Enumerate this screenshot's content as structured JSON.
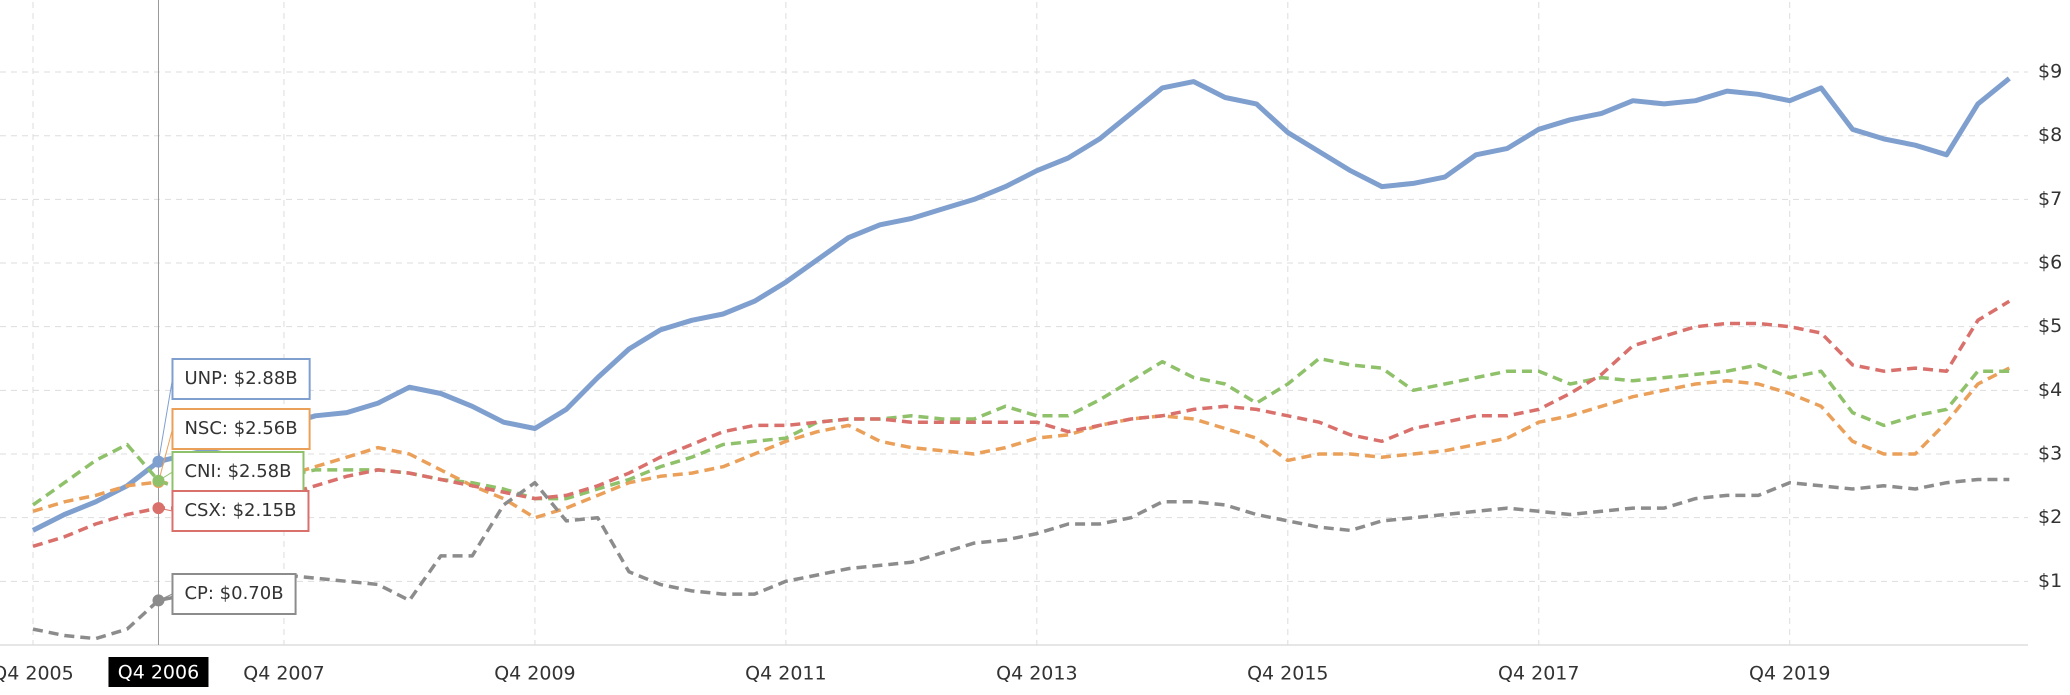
{
  "chart_data": {
    "type": "line",
    "categories": [
      "Q4 2005",
      null,
      null,
      null,
      "Q4 2006",
      null,
      null,
      null,
      "Q4 2007",
      null,
      null,
      null,
      null,
      null,
      null,
      null,
      "Q4 2009",
      null,
      null,
      null,
      null,
      null,
      null,
      null,
      "Q4 2011",
      null,
      null,
      null,
      null,
      null,
      null,
      null,
      "Q4 2013",
      null,
      null,
      null,
      null,
      null,
      null,
      null,
      "Q4 2015",
      null,
      null,
      null,
      null,
      null,
      null,
      null,
      "Q4 2017",
      null,
      null,
      null,
      null,
      null,
      null,
      null,
      "Q4 2019",
      null,
      null,
      null,
      null,
      null,
      null,
      null
    ],
    "highlight_category": 4,
    "series": [
      {
        "name": "UNP",
        "color": "#7f9fcf",
        "dashed": false,
        "tooltip": "UNP: $2.88B",
        "values": [
          1.8,
          2.05,
          2.25,
          2.5,
          2.88,
          3.0,
          3.1,
          3.3,
          3.45,
          3.6,
          3.65,
          3.8,
          4.05,
          3.95,
          3.75,
          3.5,
          3.4,
          3.7,
          4.2,
          4.65,
          4.95,
          5.1,
          5.2,
          5.4,
          5.7,
          6.05,
          6.4,
          6.6,
          6.7,
          6.85,
          7.0,
          7.2,
          7.45,
          7.65,
          7.95,
          8.35,
          8.75,
          8.85,
          8.6,
          8.5,
          8.05,
          7.75,
          7.45,
          7.2,
          7.25,
          7.35,
          7.7,
          7.8,
          8.1,
          8.25,
          8.35,
          8.55,
          8.5,
          8.55,
          8.7,
          8.65,
          8.55,
          8.75,
          8.1,
          7.95,
          7.85,
          7.7,
          8.5,
          8.9
        ]
      },
      {
        "name": "NSC",
        "color": "#eba05a",
        "dashed": true,
        "tooltip": "NSC: $2.56B",
        "values": [
          2.1,
          2.25,
          2.35,
          2.5,
          2.56,
          2.5,
          2.5,
          2.6,
          2.65,
          2.8,
          2.95,
          3.1,
          3.0,
          2.75,
          2.5,
          2.3,
          2.0,
          2.15,
          2.35,
          2.55,
          2.65,
          2.7,
          2.8,
          3.0,
          3.2,
          3.35,
          3.45,
          3.2,
          3.1,
          3.05,
          3.0,
          3.1,
          3.25,
          3.3,
          3.45,
          3.55,
          3.6,
          3.55,
          3.4,
          3.25,
          2.9,
          3.0,
          3.0,
          2.95,
          3.0,
          3.05,
          3.15,
          3.25,
          3.5,
          3.6,
          3.75,
          3.9,
          4.0,
          4.1,
          4.15,
          4.1,
          3.95,
          3.75,
          3.2,
          3.0,
          3.0,
          3.5,
          4.1,
          4.35
        ]
      },
      {
        "name": "CNI",
        "color": "#8fc16a",
        "dashed": true,
        "tooltip": "CNI: $2.58B",
        "values": [
          2.2,
          2.55,
          2.9,
          3.15,
          2.58,
          2.4,
          2.3,
          2.5,
          2.65,
          2.75,
          2.75,
          2.75,
          2.7,
          2.6,
          2.55,
          2.45,
          2.3,
          2.3,
          2.45,
          2.6,
          2.8,
          2.95,
          3.15,
          3.2,
          3.25,
          3.5,
          3.55,
          3.55,
          3.6,
          3.55,
          3.55,
          3.75,
          3.6,
          3.6,
          3.85,
          4.15,
          4.45,
          4.2,
          4.1,
          3.8,
          4.1,
          4.5,
          4.4,
          4.35,
          4.0,
          4.1,
          4.2,
          4.3,
          4.3,
          4.1,
          4.2,
          4.15,
          4.2,
          4.25,
          4.3,
          4.4,
          4.2,
          4.3,
          3.65,
          3.45,
          3.6,
          3.7,
          4.3,
          4.3
        ]
      },
      {
        "name": "CSX",
        "color": "#d9706b",
        "dashed": true,
        "tooltip": "CSX: $2.15B",
        "values": [
          1.55,
          1.7,
          1.9,
          2.05,
          2.15,
          2.15,
          2.2,
          2.3,
          2.35,
          2.5,
          2.65,
          2.75,
          2.7,
          2.6,
          2.5,
          2.4,
          2.3,
          2.35,
          2.5,
          2.7,
          2.95,
          3.15,
          3.35,
          3.45,
          3.45,
          3.5,
          3.55,
          3.55,
          3.5,
          3.5,
          3.5,
          3.5,
          3.5,
          3.35,
          3.45,
          3.55,
          3.6,
          3.7,
          3.75,
          3.7,
          3.6,
          3.5,
          3.3,
          3.2,
          3.4,
          3.5,
          3.6,
          3.6,
          3.7,
          3.95,
          4.25,
          4.7,
          4.85,
          5.0,
          5.05,
          5.05,
          5.0,
          4.9,
          4.4,
          4.3,
          4.35,
          4.3,
          5.1,
          5.4
        ]
      },
      {
        "name": "CP",
        "color": "#8c8c8c",
        "dashed": true,
        "tooltip": "CP: $0.70B",
        "values": [
          0.25,
          0.15,
          0.1,
          0.25,
          0.7,
          0.8,
          1.0,
          1.1,
          1.1,
          1.05,
          1.0,
          0.95,
          0.7,
          1.4,
          1.4,
          2.2,
          2.55,
          1.95,
          2.0,
          1.15,
          0.95,
          0.85,
          0.8,
          0.8,
          1.0,
          1.1,
          1.2,
          1.25,
          1.3,
          1.45,
          1.6,
          1.65,
          1.75,
          1.9,
          1.9,
          2.0,
          2.25,
          2.25,
          2.2,
          2.05,
          1.95,
          1.85,
          1.8,
          1.95,
          2.0,
          2.05,
          2.1,
          2.15,
          2.1,
          2.05,
          2.1,
          2.15,
          2.15,
          2.3,
          2.35,
          2.35,
          2.55,
          2.5,
          2.45,
          2.5,
          2.45,
          2.55,
          2.6,
          2.6
        ]
      }
    ],
    "ylim": [
      0,
      10.1
    ],
    "yticks": [
      {
        "value": 1,
        "label": "$1"
      },
      {
        "value": 2,
        "label": "$2"
      },
      {
        "value": 3,
        "label": "$3"
      },
      {
        "value": 4,
        "label": "$4"
      },
      {
        "value": 5,
        "label": "$5"
      },
      {
        "value": 6,
        "label": "$6"
      },
      {
        "value": 7,
        "label": "$7"
      },
      {
        "value": 8,
        "label": "$8"
      },
      {
        "value": 9,
        "label": "$9"
      }
    ],
    "grid": true
  }
}
